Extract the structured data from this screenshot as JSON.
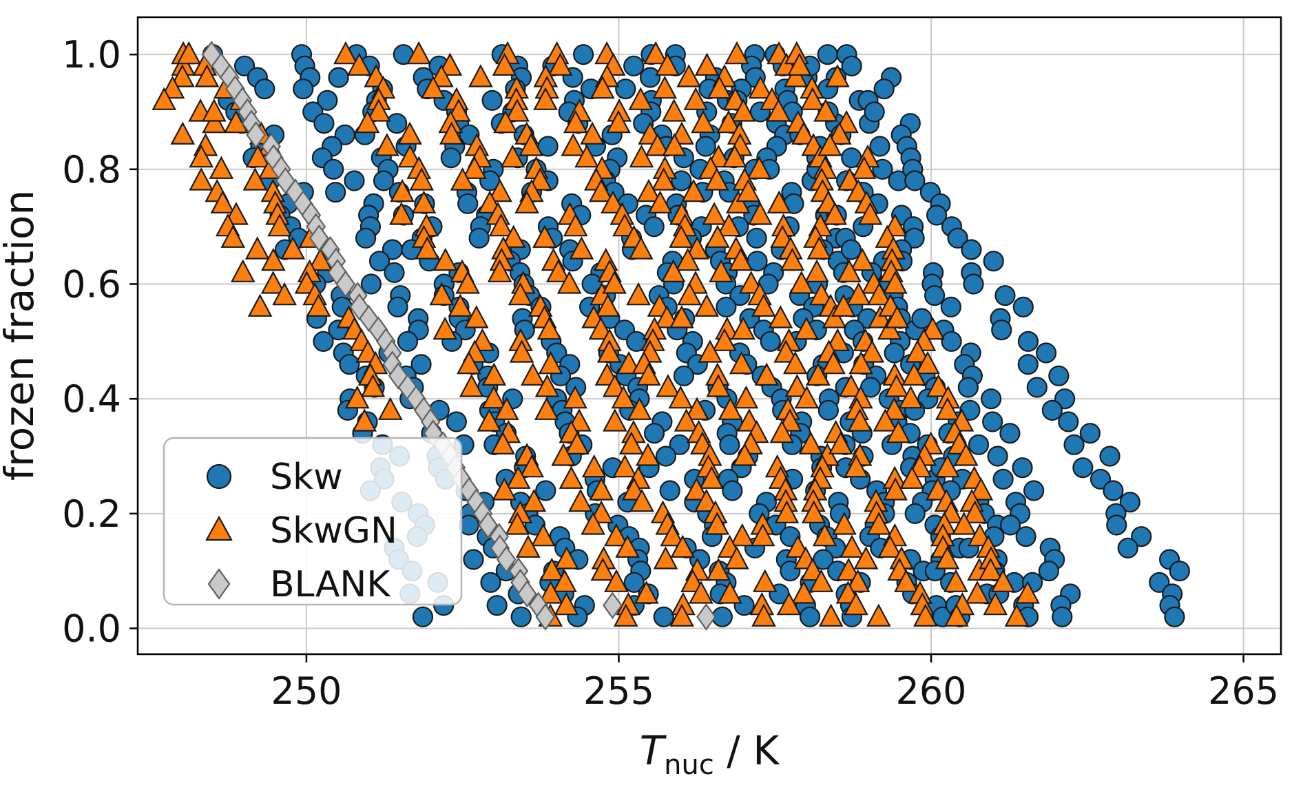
{
  "figure": {
    "background": "#ffffff"
  },
  "chart_data": {
    "type": "scatter",
    "title": "",
    "xlabel": {
      "variable": "T",
      "subscript": "nuc",
      "suffix": " / K"
    },
    "ylabel": "frozen fraction",
    "xlim": [
      247.3,
      265.6
    ],
    "ylim": [
      -0.045,
      1.065
    ],
    "xticks": [
      {
        "value": 250,
        "label": "250"
      },
      {
        "value": 255,
        "label": "255"
      },
      {
        "value": 260,
        "label": "260"
      },
      {
        "value": 265,
        "label": "265"
      }
    ],
    "yticks": [
      {
        "value": 0.0,
        "label": "0.0"
      },
      {
        "value": 0.2,
        "label": "0.2"
      },
      {
        "value": 0.4,
        "label": "0.4"
      },
      {
        "value": 0.6,
        "label": "0.6"
      },
      {
        "value": 0.8,
        "label": "0.8"
      },
      {
        "value": 1.0,
        "label": "1.0"
      }
    ],
    "grid": true,
    "legend": {
      "position": "lower left",
      "entries": [
        "Skw",
        "SkwGN",
        "BLANK"
      ]
    },
    "frozen_fraction_step": 0.02,
    "frozen_fraction_min": 0.02,
    "style": {
      "grid_color": "#c9c9c9",
      "spine_color": "#000000",
      "background": "#ffffff"
    },
    "series": [
      {
        "name": "Skw",
        "marker": "circle",
        "color": "#1f77b4",
        "edge": "#1a1a1a",
        "point_jitter_K": 0.35,
        "runs": [
          {
            "T_ff1": 248.8,
            "T_ff0": 252.1
          },
          {
            "T_ff1": 249.9,
            "T_ff0": 253.2
          },
          {
            "T_ff1": 250.7,
            "T_ff0": 254.4
          },
          {
            "T_ff1": 251.9,
            "T_ff0": 255.6
          },
          {
            "T_ff1": 253.0,
            "T_ff0": 256.8
          },
          {
            "T_ff1": 254.1,
            "T_ff0": 258.0
          },
          {
            "T_ff1": 255.2,
            "T_ff0": 259.0
          },
          {
            "T_ff1": 256.1,
            "T_ff0": 259.9
          },
          {
            "T_ff1": 256.9,
            "T_ff0": 260.7
          },
          {
            "T_ff1": 257.7,
            "T_ff0": 261.4
          },
          {
            "T_ff1": 258.3,
            "T_ff0": 262.2
          },
          {
            "T_ff1": 258.9,
            "T_ff0": 264.1
          }
        ],
        "extra_points": []
      },
      {
        "name": "SkwGN",
        "marker": "triangle",
        "color": "#ff7f0e",
        "edge": "#1a1a1a",
        "point_jitter_K": 0.35,
        "runs": [
          {
            "T_ff1": 247.7,
            "T_ff0": 251.6,
            "ff_min": 0.55
          },
          {
            "T_ff1": 248.4,
            "T_ff0": 252.8,
            "ff_min": 0.35
          },
          {
            "T_ff1": 250.9,
            "T_ff0": 254.2
          },
          {
            "T_ff1": 252.0,
            "T_ff0": 255.3
          },
          {
            "T_ff1": 253.0,
            "T_ff0": 256.3
          },
          {
            "T_ff1": 253.9,
            "T_ff0": 257.2
          },
          {
            "T_ff1": 254.8,
            "T_ff0": 258.1
          },
          {
            "T_ff1": 255.7,
            "T_ff0": 259.0
          },
          {
            "T_ff1": 256.6,
            "T_ff0": 259.9
          },
          {
            "T_ff1": 257.4,
            "T_ff0": 260.7
          },
          {
            "T_ff1": 258.1,
            "T_ff0": 261.4
          }
        ],
        "extra_points": []
      },
      {
        "name": "BLANK",
        "marker": "diamond",
        "color": "#c9c9c9",
        "edge": "#5f5f5f",
        "point_jitter_K": 0.07,
        "runs": [
          {
            "T_ff1": 248.5,
            "T_ff0": 253.8
          }
        ],
        "extra_points": [
          [
            254.9,
            0.04
          ],
          [
            256.4,
            0.02
          ]
        ]
      }
    ]
  }
}
